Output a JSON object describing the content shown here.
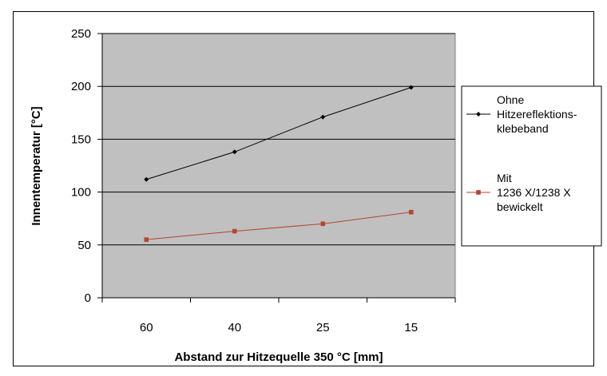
{
  "chart_data": {
    "type": "line",
    "categories": [
      "60",
      "40",
      "25",
      "15"
    ],
    "series": [
      {
        "name": "Ohne Hitzereflektions-klebeband",
        "legend_lines": [
          "Ohne",
          "Hitzereflektions-",
          "klebeband"
        ],
        "values": [
          112,
          138,
          171,
          199
        ],
        "color": "#000000",
        "marker": "diamond"
      },
      {
        "name": "Mit 1236 X/1238 X bewickelt",
        "legend_lines": [
          "Mit",
          "1236 X/1238 X",
          "bewickelt"
        ],
        "values": [
          55,
          63,
          70,
          81
        ],
        "color": "#b5452f",
        "marker": "square"
      }
    ],
    "xlabel": "Abstand zur Hitzequelle 350 °C [mm]",
    "ylabel": "Innentemperatur [°C]",
    "ylim": [
      0,
      250
    ],
    "yticks": [
      0,
      50,
      100,
      150,
      200,
      250
    ],
    "grid": true,
    "plot_background": "#c0c0c0",
    "legend_position": "right"
  }
}
